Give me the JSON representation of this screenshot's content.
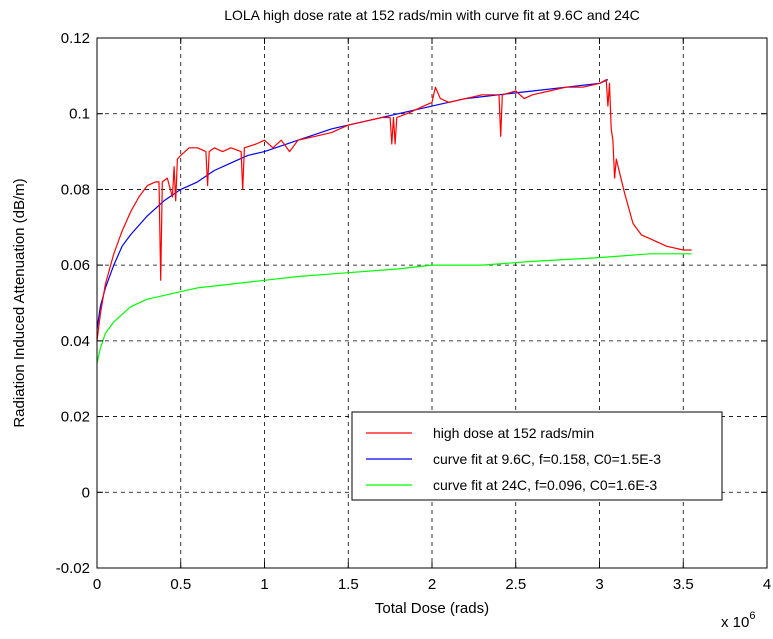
{
  "chart_data": {
    "type": "line",
    "title": "LOLA high dose rate at 152 rads/min with curve fit at 9.6C and 24C",
    "xlabel": "Total Dose (rads)",
    "ylabel": "Radiation Induced Attenuation (dB/m)",
    "x_multiplier_label": "x 10",
    "x_multiplier_exponent": "6",
    "xlim": [
      0,
      4
    ],
    "ylim": [
      -0.02,
      0.12
    ],
    "x_ticks": [
      "0",
      "0.5",
      "1",
      "1.5",
      "2",
      "2.5",
      "3",
      "3.5",
      "4"
    ],
    "y_ticks": [
      "-0.02",
      "0",
      "0.02",
      "0.04",
      "0.06",
      "0.08",
      "0.1",
      "0.12"
    ],
    "grid": true,
    "legend_position": "lower-right",
    "series": [
      {
        "name": "high dose at 152 rads/min",
        "color": "#ff0000",
        "points": [
          [
            0,
            0.04
          ],
          [
            0.02,
            0.047
          ],
          [
            0.05,
            0.055
          ],
          [
            0.1,
            0.063
          ],
          [
            0.15,
            0.069
          ],
          [
            0.2,
            0.074
          ],
          [
            0.25,
            0.078
          ],
          [
            0.3,
            0.081
          ],
          [
            0.35,
            0.082
          ],
          [
            0.37,
            0.082
          ],
          [
            0.38,
            0.056
          ],
          [
            0.39,
            0.082
          ],
          [
            0.42,
            0.083
          ],
          [
            0.45,
            0.078
          ],
          [
            0.46,
            0.086
          ],
          [
            0.47,
            0.077
          ],
          [
            0.48,
            0.088
          ],
          [
            0.5,
            0.089
          ],
          [
            0.55,
            0.091
          ],
          [
            0.6,
            0.091
          ],
          [
            0.65,
            0.09
          ],
          [
            0.66,
            0.081
          ],
          [
            0.67,
            0.09
          ],
          [
            0.7,
            0.091
          ],
          [
            0.75,
            0.09
          ],
          [
            0.8,
            0.091
          ],
          [
            0.86,
            0.09
          ],
          [
            0.87,
            0.08
          ],
          [
            0.88,
            0.091
          ],
          [
            0.95,
            0.092
          ],
          [
            1.0,
            0.093
          ],
          [
            1.05,
            0.091
          ],
          [
            1.1,
            0.093
          ],
          [
            1.15,
            0.09
          ],
          [
            1.2,
            0.093
          ],
          [
            1.3,
            0.094
          ],
          [
            1.4,
            0.095
          ],
          [
            1.5,
            0.097
          ],
          [
            1.6,
            0.098
          ],
          [
            1.7,
            0.099
          ],
          [
            1.75,
            0.099
          ],
          [
            1.76,
            0.092
          ],
          [
            1.77,
            0.099
          ],
          [
            1.78,
            0.092
          ],
          [
            1.79,
            0.099
          ],
          [
            1.85,
            0.1
          ],
          [
            1.9,
            0.101
          ],
          [
            1.95,
            0.102
          ],
          [
            2.0,
            0.103
          ],
          [
            2.02,
            0.107
          ],
          [
            2.05,
            0.104
          ],
          [
            2.1,
            0.103
          ],
          [
            2.2,
            0.104
          ],
          [
            2.3,
            0.105
          ],
          [
            2.4,
            0.105
          ],
          [
            2.41,
            0.094
          ],
          [
            2.42,
            0.105
          ],
          [
            2.5,
            0.106
          ],
          [
            2.55,
            0.104
          ],
          [
            2.6,
            0.105
          ],
          [
            2.7,
            0.106
          ],
          [
            2.8,
            0.107
          ],
          [
            2.9,
            0.107
          ],
          [
            3.0,
            0.108
          ],
          [
            3.04,
            0.109
          ],
          [
            3.05,
            0.102
          ],
          [
            3.06,
            0.108
          ],
          [
            3.07,
            0.096
          ],
          [
            3.08,
            0.093
          ],
          [
            3.09,
            0.083
          ],
          [
            3.1,
            0.088
          ],
          [
            3.15,
            0.079
          ],
          [
            3.2,
            0.071
          ],
          [
            3.25,
            0.068
          ],
          [
            3.3,
            0.067
          ],
          [
            3.4,
            0.065
          ],
          [
            3.5,
            0.064
          ],
          [
            3.55,
            0.064
          ]
        ]
      },
      {
        "name": "curve fit at 9.6C, f=0.158, C0=1.5E-3",
        "color": "#0000ff",
        "points": [
          [
            0,
            0.043
          ],
          [
            0.02,
            0.049
          ],
          [
            0.05,
            0.054
          ],
          [
            0.1,
            0.06
          ],
          [
            0.15,
            0.065
          ],
          [
            0.2,
            0.068
          ],
          [
            0.3,
            0.073
          ],
          [
            0.4,
            0.077
          ],
          [
            0.5,
            0.08
          ],
          [
            0.6,
            0.082
          ],
          [
            0.7,
            0.085
          ],
          [
            0.8,
            0.087
          ],
          [
            0.9,
            0.089
          ],
          [
            1.0,
            0.09
          ],
          [
            1.2,
            0.093
          ],
          [
            1.4,
            0.096
          ],
          [
            1.6,
            0.098
          ],
          [
            1.8,
            0.1
          ],
          [
            2.0,
            0.102
          ],
          [
            2.2,
            0.104
          ],
          [
            2.4,
            0.105
          ],
          [
            2.6,
            0.106
          ],
          [
            2.8,
            0.107
          ],
          [
            3.0,
            0.108
          ],
          [
            3.05,
            0.109
          ]
        ]
      },
      {
        "name": "curve fit at 24C, f=0.096, C0=1.6E-3",
        "color": "#00ff00",
        "points": [
          [
            0,
            0.034
          ],
          [
            0.02,
            0.038
          ],
          [
            0.05,
            0.042
          ],
          [
            0.1,
            0.045
          ],
          [
            0.15,
            0.047
          ],
          [
            0.2,
            0.049
          ],
          [
            0.3,
            0.051
          ],
          [
            0.4,
            0.052
          ],
          [
            0.5,
            0.053
          ],
          [
            0.6,
            0.054
          ],
          [
            0.8,
            0.055
          ],
          [
            1.0,
            0.056
          ],
          [
            1.2,
            0.057
          ],
          [
            1.5,
            0.058
          ],
          [
            1.8,
            0.059
          ],
          [
            2.0,
            0.06
          ],
          [
            2.3,
            0.06
          ],
          [
            2.6,
            0.061
          ],
          [
            3.0,
            0.062
          ],
          [
            3.3,
            0.063
          ],
          [
            3.55,
            0.063
          ]
        ]
      }
    ]
  }
}
